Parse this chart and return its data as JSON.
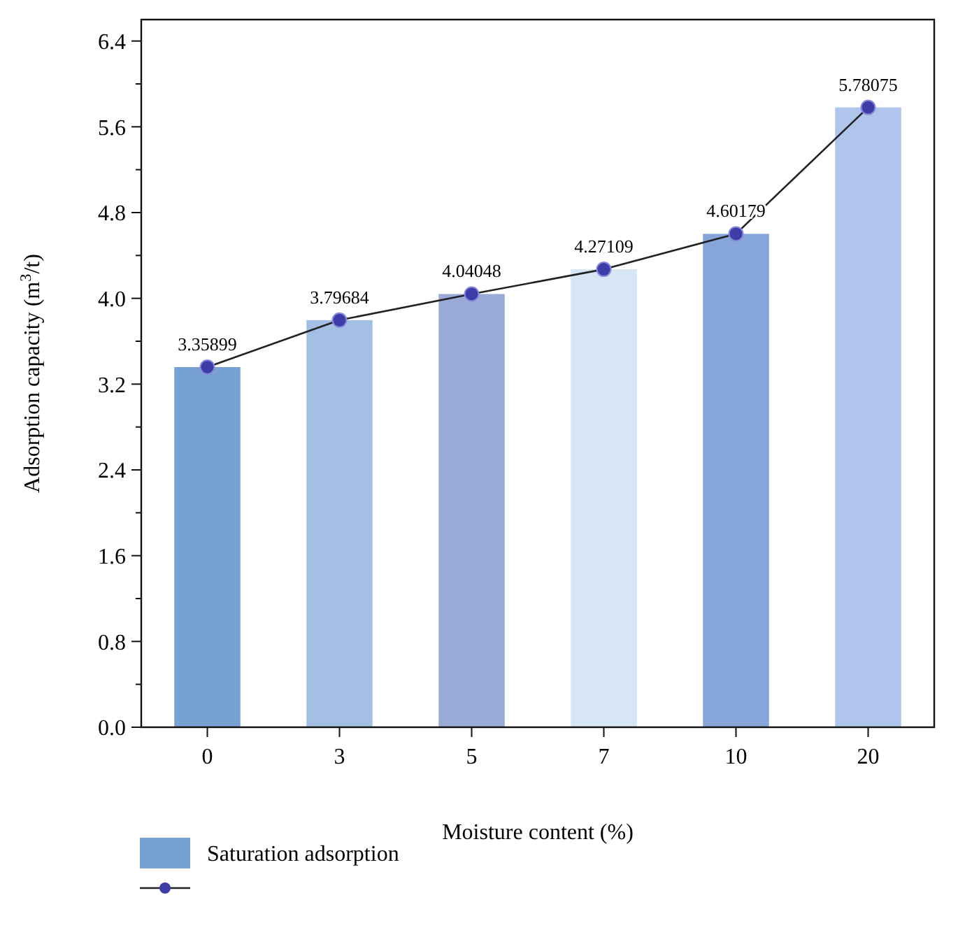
{
  "chart_data": {
    "type": "bar",
    "xlabel": "Moisture content (%)",
    "ylabel": "Adsorption capacity (m$^{3}$/t)",
    "categories": [
      "0",
      "3",
      "5",
      "7",
      "10",
      "20"
    ],
    "series": [
      {
        "name": "Saturation adsorption",
        "color": "#77a1d3",
        "colors": [
          "#77a1d3",
          "#a3c0e4",
          "#99aad6",
          "#d6e6f4",
          "#86a6da",
          "#afc5eb"
        ],
        "values": [
          3.35899,
          3.79684,
          4.04048,
          4.27109,
          4.60179,
          5.78075
        ]
      },
      {
        "type": "line",
        "color": "#3d3da8",
        "marker": "circle",
        "line_style": "solid",
        "values": [
          3.35899,
          3.79684,
          4.04048,
          4.27109,
          4.60179,
          5.78075
        ],
        "value_labels": [
          "3.35899",
          "3.79684",
          "4.04048",
          "4.27109",
          "4.60179",
          "5.78075"
        ]
      }
    ],
    "ylim": [
      0,
      6.6
    ],
    "yticks": [
      {
        "value": 0,
        "label": "0.0"
      },
      {
        "value": 0.4,
        "label": null
      },
      {
        "value": 0.8,
        "label": "0.8"
      },
      {
        "value": 1.2,
        "label": null
      },
      {
        "value": 1.6,
        "label": "1.6"
      },
      {
        "value": 2.0,
        "label": null
      },
      {
        "value": 2.4,
        "label": "2.4"
      },
      {
        "value": 2.8,
        "label": null
      },
      {
        "value": 3.2,
        "label": "3.2"
      },
      {
        "value": 3.6,
        "label": null
      },
      {
        "value": 4.0,
        "label": "4.0"
      },
      {
        "value": 4.4,
        "label": null
      },
      {
        "value": 4.8,
        "label": "4.8"
      },
      {
        "value": 5.2,
        "label": null
      },
      {
        "value": 5.6,
        "label": "5.6"
      },
      {
        "value": 6.0,
        "label": null
      },
      {
        "value": 6.4,
        "label": "6.4"
      }
    ],
    "grid": false,
    "legend": "bottom"
  }
}
